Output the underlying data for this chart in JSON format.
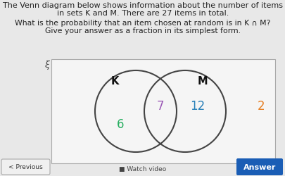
{
  "title_line1": "The Venn diagram below shows information about the number of items",
  "title_line2": "in sets K and M. There are 27 items in total.",
  "question_line1": "What is the probability that an item chosen at random is in K ∩ M?",
  "question_line2": "Give your answer as a fraction in its simplest form.",
  "bg_color": "#e8e8e8",
  "box_facecolor": "#f5f5f5",
  "box_edgecolor": "#aaaaaa",
  "circle_color": "#444444",
  "k_label": "K",
  "m_label": "M",
  "xi_label": "ξ",
  "val_intersection": "7",
  "val_k_only": "6",
  "val_m_only": "12",
  "val_outside": "2",
  "col_intersection": "#9b59b6",
  "col_k_only": "#27ae60",
  "col_m_only": "#2980b9",
  "col_outside": "#e67e22",
  "col_k_label": "#111111",
  "col_m_label": "#111111",
  "prev_btn_text": "< Previous",
  "watch_text": "■ Watch video",
  "answer_btn_text": "Answer",
  "answer_btn_color": "#1a5db5",
  "title_fontsize": 8.0,
  "question_fontsize": 7.8,
  "num_fontsize": 12,
  "label_fontsize": 10.5
}
